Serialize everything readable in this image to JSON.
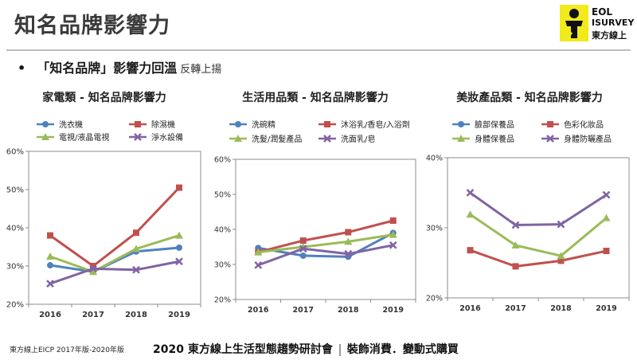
{
  "header": {
    "title": "知名品牌影響力",
    "logo": {
      "line1": "EOL",
      "line2": "ISURVEY",
      "line3": "東方線上",
      "icon": "eol-figure-logo",
      "accent": "#f2ea1a"
    }
  },
  "bullet": {
    "marker": "•",
    "text": "「知名品牌」影響力回溫",
    "sub": "反轉上揚"
  },
  "footer": {
    "source": "東方線上EICP 2017年版-2020年版",
    "event": "2020 東方線上生活型態趨勢研討會",
    "theme": "裝飾消費．變動式購買"
  },
  "chart_data": [
    {
      "type": "line",
      "title": "家電類 - 知名品牌影響力",
      "categories": [
        "2016",
        "2017",
        "2018",
        "2019"
      ],
      "ylim": [
        20,
        60
      ],
      "yticks": [
        "20%",
        "30%",
        "40%",
        "50%",
        "60%"
      ],
      "grid": false,
      "legend": "top",
      "series": [
        {
          "name": "洗衣機",
          "values": [
            30.2,
            28.5,
            33.8,
            34.8
          ],
          "color": "#4f81bd",
          "marker": "circle"
        },
        {
          "name": "除濕機",
          "values": [
            38,
            30,
            38.7,
            50.5
          ],
          "color": "#c0504d",
          "marker": "square"
        },
        {
          "name": "電視/液晶電視",
          "values": [
            32.5,
            28.5,
            34.5,
            38
          ],
          "color": "#9bbb59",
          "marker": "triangle"
        },
        {
          "name": "淨水設備",
          "values": [
            25.4,
            29.3,
            29,
            31.2
          ],
          "color": "#8064a2",
          "marker": "x"
        }
      ]
    },
    {
      "type": "line",
      "title": "生活用品類 - 知名品牌影響力",
      "categories": [
        "2016",
        "2017",
        "2018",
        "2019"
      ],
      "ylim": [
        20,
        60
      ],
      "yticks": [
        "20%",
        "30%",
        "40%",
        "50%",
        "60%"
      ],
      "grid": false,
      "legend": "top",
      "series": [
        {
          "name": "洗碗精",
          "values": [
            34.7,
            32.5,
            32.2,
            39
          ],
          "color": "#4f81bd",
          "marker": "circle"
        },
        {
          "name": "沐浴乳/香皂/入浴劑",
          "values": [
            33.5,
            36.8,
            39.2,
            42.5
          ],
          "color": "#c0504d",
          "marker": "square"
        },
        {
          "name": "洗髮/潤髮產品",
          "values": [
            33.5,
            35,
            36.5,
            38.5
          ],
          "color": "#9bbb59",
          "marker": "triangle"
        },
        {
          "name": "洗面乳/皂",
          "values": [
            29.8,
            34.5,
            33,
            35.5
          ],
          "color": "#8064a2",
          "marker": "x"
        }
      ]
    },
    {
      "type": "line",
      "title": "美妝產品類 - 知名品牌影響力",
      "categories": [
        "2016",
        "2017",
        "2018",
        "2019"
      ],
      "ylim": [
        20,
        40
      ],
      "yticks": [
        "20%",
        "30%",
        "40%"
      ],
      "grid": false,
      "legend": "top",
      "series": [
        {
          "name": "臉部保養品",
          "values": [
            null,
            null,
            null,
            null
          ],
          "color": "#4f81bd",
          "marker": "circle"
        },
        {
          "name": "色彩化妝品",
          "values": [
            26.8,
            24.5,
            25.3,
            26.7
          ],
          "color": "#c0504d",
          "marker": "square"
        },
        {
          "name": "身體保養品",
          "values": [
            31.9,
            27.5,
            26,
            31.4
          ],
          "color": "#9bbb59",
          "marker": "triangle"
        },
        {
          "name": "身體防曬產品",
          "values": [
            35,
            30.4,
            30.5,
            34.7
          ],
          "color": "#8064a2",
          "marker": "x"
        }
      ]
    }
  ]
}
